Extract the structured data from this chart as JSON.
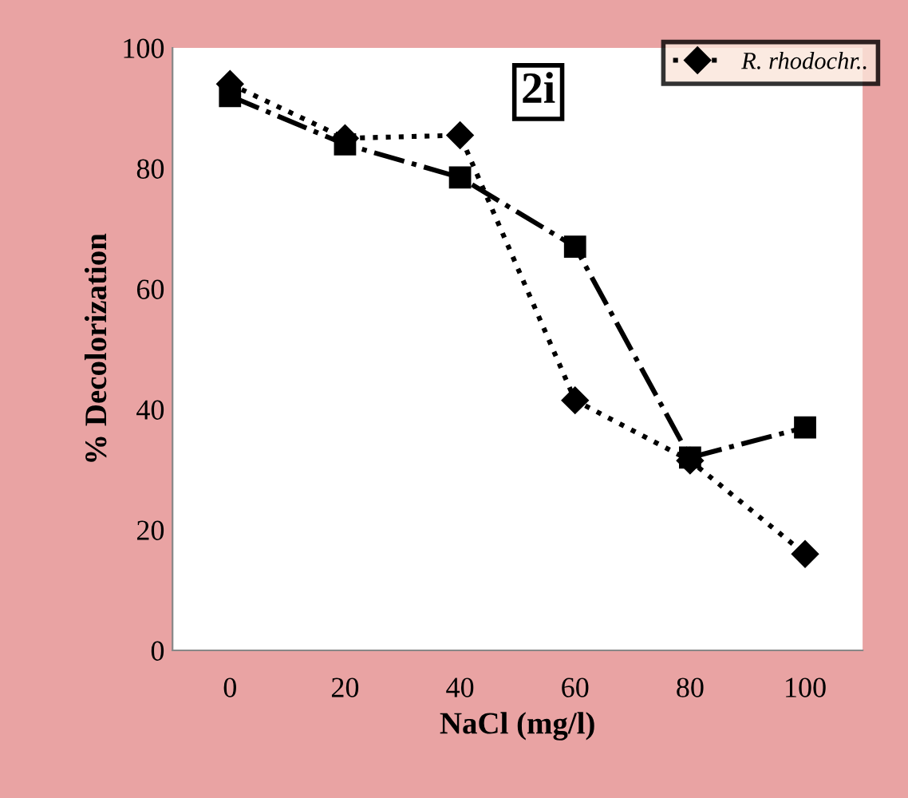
{
  "chart_data": {
    "type": "line",
    "xlabel": "NaCl (mg/l)",
    "ylabel": "% Decolorization",
    "categories": [
      "0",
      "20",
      "40",
      "60",
      "80",
      "100"
    ],
    "series": [
      {
        "name": "R. rhodochr..",
        "color": "#000000",
        "marker": "diamond",
        "line_style": "dotted",
        "values": [
          94,
          85,
          85.5,
          41.5,
          31.5,
          16
        ]
      },
      {
        "color": "#000000",
        "marker": "square",
        "line_style": "dashdot",
        "values": [
          92,
          84,
          78.5,
          67,
          32,
          37
        ]
      }
    ],
    "ylim": [
      0,
      100
    ],
    "yticks": [
      0,
      20,
      40,
      60,
      80,
      100
    ],
    "grid": false,
    "legend": "top right",
    "annotations": [
      "2i"
    ]
  }
}
